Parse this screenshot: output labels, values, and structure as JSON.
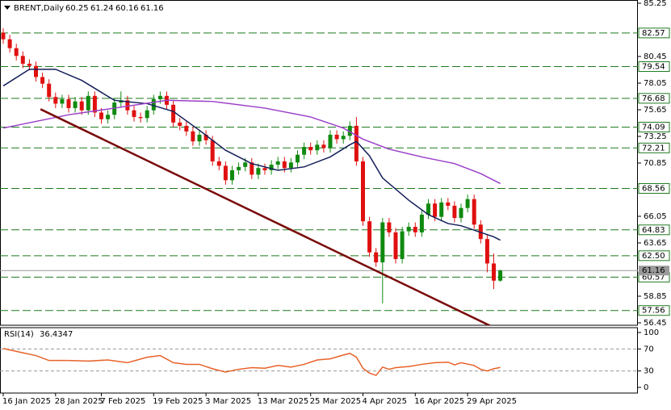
{
  "chart_data": [
    {
      "type": "candlestick",
      "title": "BRENT,Daily",
      "categories": [
        "16 Jan 2025",
        null,
        null,
        null,
        null,
        null,
        null,
        null,
        "28 Jan 2025",
        null,
        null,
        null,
        null,
        null,
        null,
        "7 Feb 2025",
        null,
        null,
        null,
        null,
        null,
        null,
        null,
        "19 Feb 2025",
        null,
        null,
        null,
        null,
        null,
        null,
        null,
        "3 Mar 2025",
        null,
        null,
        null,
        null,
        null,
        null,
        null,
        "13 Mar 2025",
        null,
        null,
        null,
        null,
        null,
        null,
        null,
        "25 Mar 2025",
        null,
        null,
        null,
        null,
        null,
        null,
        null,
        "4 Apr 2025",
        null,
        null,
        null,
        null,
        null,
        null,
        null,
        "16 Apr 2025",
        null,
        null,
        null,
        null,
        null,
        null,
        null,
        "29 Apr 2025",
        null,
        null,
        null,
        null,
        null
      ],
      "open": [
        82.6,
        82.0,
        81.2,
        80.5,
        79.8,
        79.6,
        78.6,
        78.0,
        76.8,
        76.2,
        76.6,
        75.8,
        76.4,
        75.6,
        76.9,
        75.4,
        74.8,
        75.2,
        76.3,
        76.5,
        75.6,
        75.0,
        74.9,
        75.6,
        76.6,
        76.9,
        76.1,
        74.5,
        74.2,
        73.7,
        72.8,
        73.4,
        72.9,
        71.0,
        70.6,
        69.3,
        70.2,
        70.5,
        70.9,
        69.8,
        70.4,
        70.2,
        70.7,
        71.0,
        70.4,
        70.9,
        71.6,
        72.3,
        72.0,
        72.5,
        72.2,
        73.4,
        73.0,
        73.3,
        74.2,
        71.0,
        65.6,
        62.8,
        61.9,
        65.5,
        64.6,
        62.2,
        64.7,
        65.1,
        64.6,
        66.2,
        67.2,
        66.0,
        67.3,
        67.0,
        65.9,
        66.8,
        67.6,
        65.3,
        64.0,
        61.8,
        60.25
      ],
      "high": [
        83.0,
        82.4,
        81.6,
        80.9,
        80.2,
        80.0,
        79.0,
        78.4,
        77.2,
        77.0,
        77.0,
        76.8,
        76.8,
        77.3,
        77.3,
        75.8,
        75.6,
        76.7,
        77.3,
        76.9,
        76.0,
        75.4,
        76.0,
        77.0,
        77.3,
        77.3,
        76.5,
        74.9,
        74.6,
        74.1,
        73.8,
        73.8,
        73.3,
        71.4,
        71.0,
        70.6,
        70.9,
        71.3,
        71.3,
        70.8,
        70.8,
        71.1,
        71.4,
        71.4,
        71.3,
        72.0,
        72.7,
        72.7,
        72.9,
        72.9,
        73.8,
        73.8,
        73.7,
        74.6,
        75.0,
        71.4,
        66.0,
        63.2,
        65.9,
        65.9,
        65.0,
        65.1,
        65.5,
        65.5,
        66.6,
        67.6,
        67.6,
        67.7,
        67.7,
        67.4,
        67.2,
        68.0,
        68.0,
        65.7,
        64.4,
        62.7,
        61.24
      ],
      "low": [
        81.6,
        80.8,
        80.1,
        79.4,
        79.2,
        78.2,
        77.6,
        76.4,
        75.8,
        75.8,
        75.4,
        75.4,
        75.2,
        75.2,
        75.0,
        74.4,
        74.4,
        74.8,
        75.9,
        75.2,
        74.6,
        74.5,
        74.5,
        75.2,
        76.2,
        75.7,
        74.1,
        73.8,
        73.3,
        72.4,
        72.4,
        72.5,
        70.6,
        70.2,
        68.9,
        68.9,
        69.8,
        70.1,
        69.4,
        69.4,
        69.8,
        69.8,
        70.3,
        70.0,
        70.0,
        70.5,
        71.2,
        71.6,
        71.6,
        71.8,
        71.8,
        72.6,
        72.6,
        72.9,
        70.6,
        65.2,
        62.4,
        61.5,
        58.2,
        64.2,
        61.8,
        61.8,
        64.3,
        64.2,
        64.2,
        65.8,
        65.6,
        65.6,
        66.6,
        65.5,
        65.5,
        66.4,
        64.9,
        63.6,
        61.0,
        59.5,
        60.16
      ],
      "close": [
        82.0,
        81.2,
        80.5,
        79.8,
        79.6,
        78.6,
        78.0,
        76.8,
        76.2,
        76.6,
        75.8,
        76.4,
        75.6,
        76.9,
        75.4,
        74.8,
        75.2,
        76.3,
        76.5,
        75.6,
        75.0,
        74.9,
        75.6,
        76.6,
        76.9,
        76.1,
        74.5,
        74.2,
        73.7,
        72.8,
        73.4,
        72.9,
        71.0,
        70.6,
        69.3,
        70.2,
        70.5,
        70.9,
        69.8,
        70.4,
        70.2,
        70.7,
        71.0,
        70.4,
        70.9,
        71.6,
        72.3,
        72.0,
        72.5,
        72.2,
        73.4,
        73.0,
        73.3,
        74.2,
        71.0,
        65.6,
        62.8,
        61.9,
        65.5,
        64.6,
        62.2,
        64.7,
        65.1,
        64.6,
        66.2,
        67.2,
        66.0,
        67.3,
        67.0,
        65.9,
        66.8,
        67.6,
        65.3,
        64.0,
        61.8,
        60.25,
        61.16
      ],
      "up_color": "#0f8a0f",
      "down_color": "#e01010",
      "series": [
        {
          "color": "#141e5a",
          "x": [
            0,
            4,
            8,
            12,
            17,
            22,
            26,
            30,
            34,
            38,
            42,
            46,
            50,
            53,
            54,
            56,
            58,
            62,
            65,
            68,
            70,
            72,
            75,
            76
          ],
          "values": [
            77.8,
            79.3,
            79.3,
            78.3,
            76.5,
            76.2,
            75.5,
            73.8,
            72.0,
            70.8,
            70.2,
            70.5,
            71.4,
            72.5,
            72.8,
            71.5,
            69.5,
            67.5,
            66.2,
            65.4,
            65.2,
            64.8,
            64.2,
            63.9
          ]
        },
        {
          "color": "#9b3fc8",
          "x": [
            0,
            10,
            17,
            25,
            32,
            40,
            47,
            52,
            55,
            59,
            64,
            69,
            73,
            76
          ],
          "values": [
            74.0,
            75.2,
            75.8,
            76.5,
            76.4,
            75.8,
            75.0,
            74.0,
            73.0,
            72.1,
            71.4,
            70.8,
            69.9,
            69.0
          ]
        }
      ],
      "trendline": {
        "color": "#7a0a0a",
        "x": [
          5.7,
          74.4
        ],
        "values": [
          75.7,
          56.2
        ]
      },
      "levels": [
        82.57,
        79.54,
        76.68,
        74.09,
        72.21,
        68.56,
        64.83,
        {
          "value": 62.5,
          "label": "62.50"
        },
        60.57,
        57.56
      ],
      "level_color": "#1f7a1f",
      "last_color": "#9a9a9a",
      "ylim": [
        56.45,
        85.25
      ],
      "yticks": [
        85.25,
        80.45,
        78.05,
        75.65,
        73.25,
        70.85,
        66.05,
        63.65,
        58.85,
        56.45
      ]
    },
    {
      "type": "line",
      "title": "RSI(14)",
      "x": [
        0,
        3,
        5,
        7,
        10,
        13,
        16,
        19,
        22,
        24,
        26,
        28,
        30,
        32,
        34,
        36,
        38,
        40,
        42,
        44,
        46,
        48,
        50,
        52,
        53,
        54,
        55,
        56,
        57,
        58,
        59,
        60,
        62,
        64,
        66,
        68,
        69,
        70,
        72,
        73,
        74,
        75,
        76
      ],
      "values": [
        71,
        63,
        58,
        49,
        49,
        48,
        50,
        45,
        55,
        58,
        45,
        42,
        42,
        34,
        28,
        33,
        36,
        35,
        40,
        37,
        42,
        50,
        52,
        59,
        62,
        55,
        35,
        26,
        22,
        37,
        33,
        36,
        38,
        42,
        45,
        46,
        41,
        45,
        40,
        33,
        30,
        34,
        36.4347
      ],
      "color": "#e8622a",
      "levels": [
        70,
        30
      ],
      "ylim": [
        0,
        100
      ],
      "yticks": [
        100,
        70,
        30,
        0
      ]
    }
  ]
}
